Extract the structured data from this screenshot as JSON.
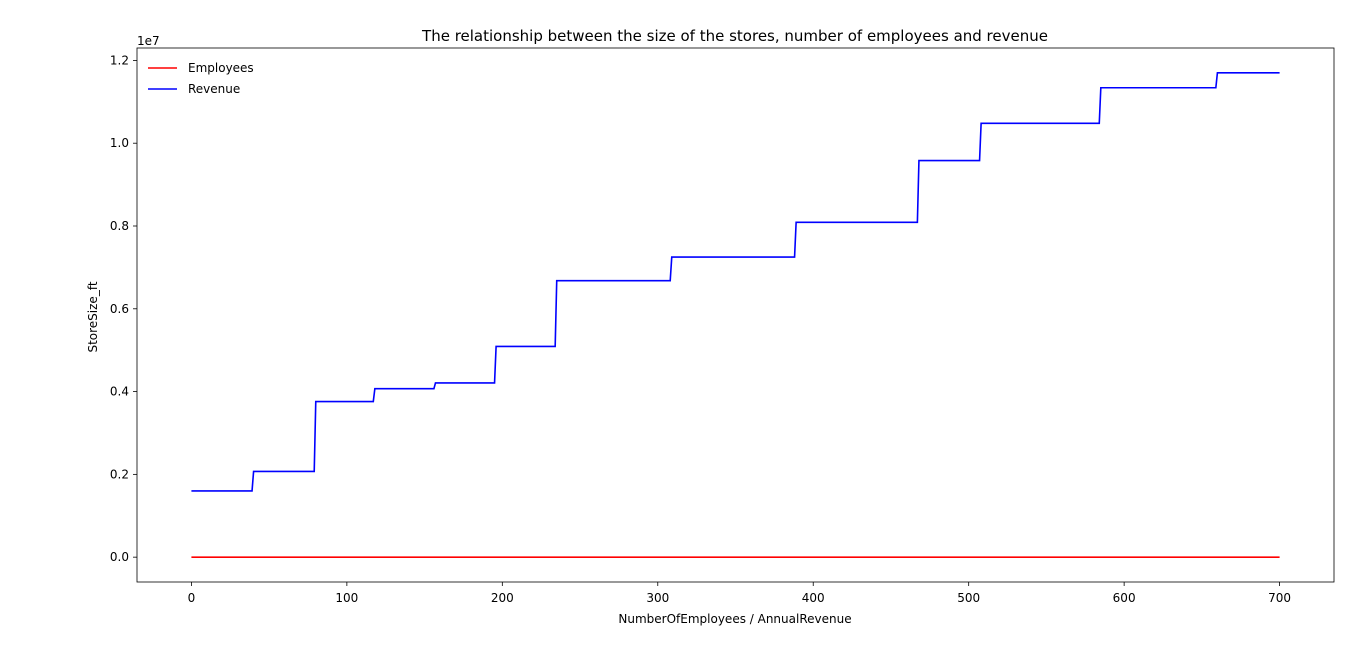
{
  "chart_data": {
    "type": "line",
    "title": "The relationship between the size of the stores, number of employees and revenue",
    "xlabel": "NumberOfEmployees / AnnualRevenue",
    "ylabel": "StoreSize_ft",
    "y_offset_text": "1e7",
    "xlim": [
      -35,
      735
    ],
    "ylim": [
      -0.06,
      1.23
    ],
    "y_unit_multiplier": 10000000,
    "x_ticks": [
      0,
      100,
      200,
      300,
      400,
      500,
      600,
      700
    ],
    "x_tick_labels": [
      "0",
      "100",
      "200",
      "300",
      "400",
      "500",
      "600",
      "700"
    ],
    "y_ticks": [
      0.0,
      0.2,
      0.4,
      0.6,
      0.8,
      1.0,
      1.2
    ],
    "y_tick_labels": [
      "0.0",
      "0.2",
      "0.4",
      "0.6",
      "0.8",
      "1.0",
      "1.2"
    ],
    "grid": false,
    "legend_position": "top-left",
    "series": [
      {
        "name": "Employees",
        "color": "#ff0000",
        "x": [
          0,
          700
        ],
        "y": [
          0,
          0
        ]
      },
      {
        "name": "Revenue",
        "color": "#0000ff",
        "x": [
          0,
          39,
          40,
          79,
          80,
          117,
          118,
          156,
          157,
          195,
          196,
          234,
          235,
          308,
          309,
          388,
          389,
          467,
          468,
          507,
          508,
          584,
          585,
          659,
          660,
          700
        ],
        "y": [
          0.16,
          0.16,
          0.207,
          0.207,
          0.376,
          0.376,
          0.407,
          0.407,
          0.421,
          0.421,
          0.509,
          0.509,
          0.668,
          0.668,
          0.725,
          0.725,
          0.809,
          0.809,
          0.958,
          0.958,
          1.048,
          1.048,
          1.134,
          1.134,
          1.17,
          1.17
        ]
      }
    ]
  }
}
